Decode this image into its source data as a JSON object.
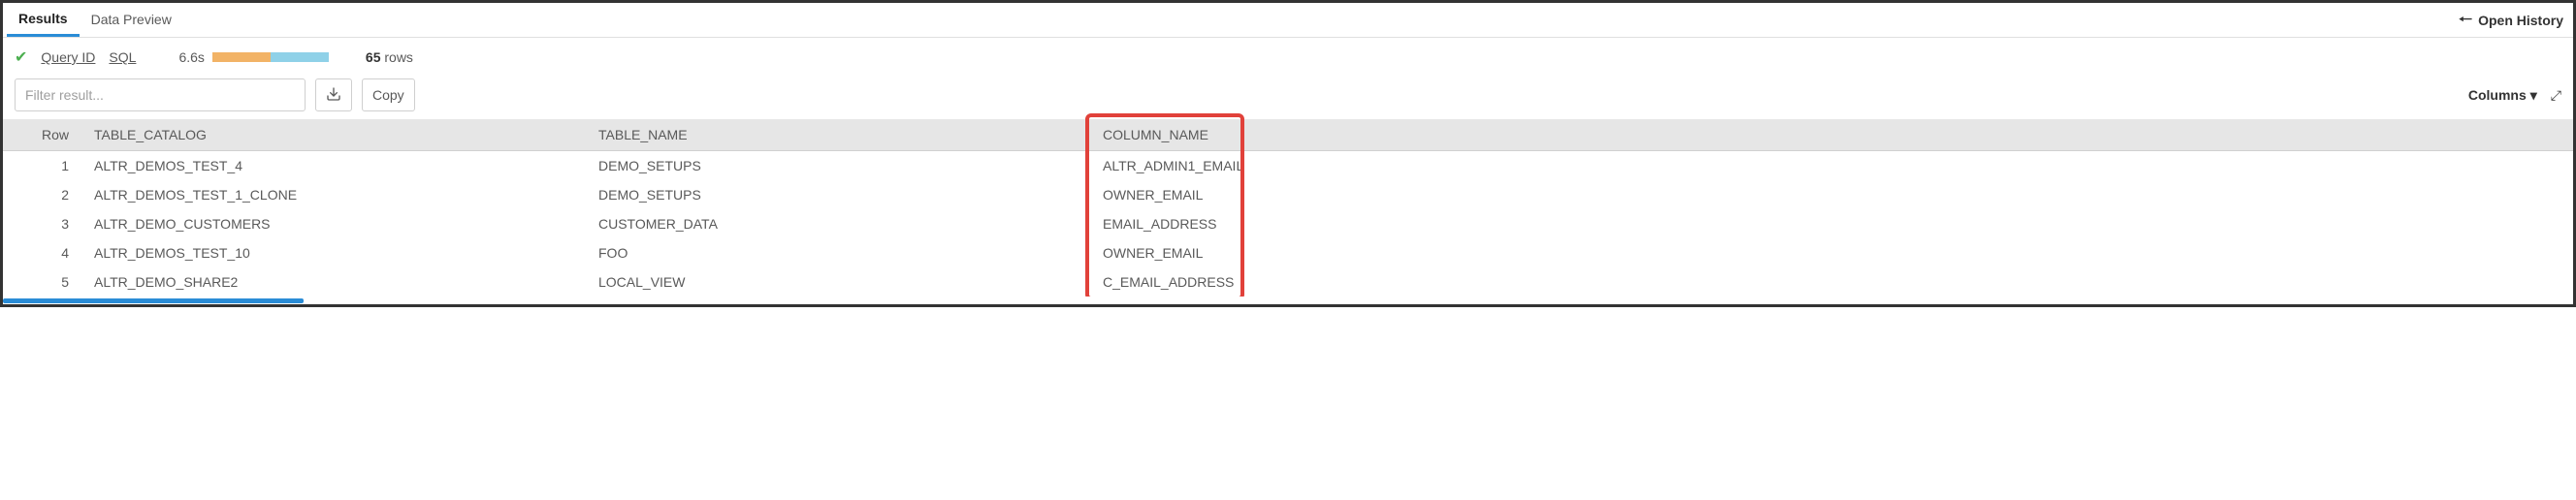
{
  "tabs": {
    "results_label": "Results",
    "data_preview_label": "Data Preview",
    "open_history_label": "Open History"
  },
  "meta": {
    "query_id_label": "Query ID",
    "sql_label": "SQL",
    "duration": "6.6s",
    "row_count": "65",
    "rows_suffix": " rows"
  },
  "tools": {
    "filter_placeholder": "Filter result...",
    "copy_label": "Copy",
    "columns_label": "Columns"
  },
  "table": {
    "headers": {
      "row": "Row",
      "table_catalog": "TABLE_CATALOG",
      "table_name": "TABLE_NAME",
      "column_name": "COLUMN_NAME"
    },
    "rows": [
      {
        "n": "1",
        "catalog": "ALTR_DEMOS_TEST_4",
        "tname": "DEMO_SETUPS",
        "colname": "ALTR_ADMIN1_EMAIL"
      },
      {
        "n": "2",
        "catalog": "ALTR_DEMOS_TEST_1_CLONE",
        "tname": "DEMO_SETUPS",
        "colname": "OWNER_EMAIL"
      },
      {
        "n": "3",
        "catalog": "ALTR_DEMO_CUSTOMERS",
        "tname": "CUSTOMER_DATA",
        "colname": "EMAIL_ADDRESS"
      },
      {
        "n": "4",
        "catalog": "ALTR_DEMOS_TEST_10",
        "tname": "FOO",
        "colname": "OWNER_EMAIL"
      },
      {
        "n": "5",
        "catalog": "ALTR_DEMO_SHARE2",
        "tname": "LOCAL_VIEW",
        "colname": "C_EMAIL_ADDRESS"
      }
    ]
  },
  "style": {
    "highlight_color": "#e1413a",
    "timing_seg1_color": "#f2b366",
    "timing_seg2_color": "#8fd1e8",
    "accent_color": "#2a8cd6"
  }
}
